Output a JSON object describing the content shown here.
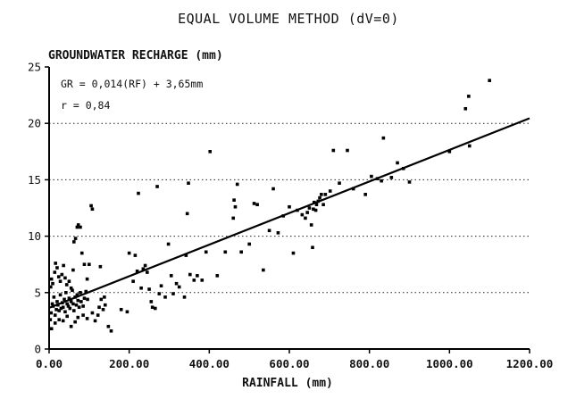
{
  "chart_data": {
    "type": "scatter",
    "title": "EQUAL VOLUME METHOD (dV=0)",
    "ylabel": "GROUNDWATER RECHARGE (mm)",
    "xlabel": "RAINFALL (mm)",
    "xlim": [
      0,
      1200
    ],
    "ylim": [
      0,
      25
    ],
    "x_ticks": [
      "0.00",
      "200.00",
      "400.00",
      "600.00",
      "800.00",
      "1000.00",
      "1200.00"
    ],
    "y_ticks": [
      "0",
      "5",
      "10",
      "15",
      "20",
      "25"
    ],
    "grid": "horizontal dotted at 5, 10, 15, 20",
    "annotations": [
      "GR = 0,014(RF) + 3,65mm",
      "r = 0,84"
    ],
    "regression": {
      "slope": 0.014,
      "intercept": 3.65
    },
    "points": [
      [
        3,
        2.6
      ],
      [
        5,
        3.2
      ],
      [
        8,
        4.0
      ],
      [
        10,
        3.8
      ],
      [
        12,
        4.6
      ],
      [
        15,
        3.0
      ],
      [
        18,
        3.5
      ],
      [
        20,
        4.2
      ],
      [
        22,
        3.9
      ],
      [
        25,
        3.4
      ],
      [
        28,
        4.8
      ],
      [
        30,
        3.6
      ],
      [
        33,
        4.1
      ],
      [
        35,
        3.7
      ],
      [
        38,
        4.4
      ],
      [
        40,
        3.3
      ],
      [
        42,
        5.0
      ],
      [
        45,
        4.0
      ],
      [
        48,
        3.8
      ],
      [
        50,
        4.5
      ],
      [
        52,
        3.6
      ],
      [
        55,
        4.2
      ],
      [
        58,
        5.2
      ],
      [
        60,
        4.0
      ],
      [
        62,
        3.4
      ],
      [
        65,
        4.6
      ],
      [
        68,
        3.9
      ],
      [
        70,
        4.8
      ],
      [
        72,
        4.3
      ],
      [
        75,
        3.7
      ],
      [
        78,
        5.0
      ],
      [
        80,
        4.2
      ],
      [
        85,
        3.8
      ],
      [
        88,
        4.5
      ],
      [
        92,
        5.1
      ],
      [
        96,
        4.4
      ],
      [
        4,
        5.5
      ],
      [
        6,
        6.2
      ],
      [
        9,
        5.8
      ],
      [
        14,
        6.8
      ],
      [
        16,
        7.6
      ],
      [
        20,
        7.2
      ],
      [
        24,
        6.4
      ],
      [
        28,
        6.0
      ],
      [
        32,
        6.6
      ],
      [
        36,
        7.4
      ],
      [
        40,
        6.3
      ],
      [
        44,
        5.7
      ],
      [
        50,
        6.0
      ],
      [
        55,
        5.4
      ],
      [
        60,
        7.0
      ],
      [
        62,
        9.5
      ],
      [
        66,
        9.8
      ],
      [
        70,
        10.8
      ],
      [
        73,
        11.0
      ],
      [
        78,
        10.8
      ],
      [
        82,
        8.5
      ],
      [
        88,
        7.5
      ],
      [
        95,
        6.2
      ],
      [
        100,
        7.5
      ],
      [
        105,
        12.7
      ],
      [
        108,
        12.4
      ],
      [
        6,
        1.8
      ],
      [
        15,
        2.3
      ],
      [
        25,
        2.6
      ],
      [
        35,
        2.5
      ],
      [
        45,
        2.9
      ],
      [
        55,
        2.0
      ],
      [
        65,
        2.4
      ],
      [
        72,
        2.8
      ],
      [
        85,
        3.0
      ],
      [
        95,
        2.7
      ],
      [
        108,
        3.2
      ],
      [
        115,
        2.5
      ],
      [
        122,
        3.0
      ],
      [
        125,
        3.7
      ],
      [
        130,
        4.4
      ],
      [
        135,
        3.5
      ],
      [
        138,
        4.6
      ],
      [
        140,
        3.9
      ],
      [
        128,
        7.3
      ],
      [
        148,
        2.0
      ],
      [
        155,
        1.6
      ],
      [
        180,
        3.5
      ],
      [
        195,
        3.3
      ],
      [
        200,
        8.5
      ],
      [
        210,
        6.0
      ],
      [
        215,
        8.3
      ],
      [
        220,
        6.9
      ],
      [
        223,
        13.8
      ],
      [
        230,
        5.4
      ],
      [
        235,
        7.1
      ],
      [
        240,
        7.4
      ],
      [
        245,
        6.8
      ],
      [
        250,
        5.3
      ],
      [
        255,
        4.2
      ],
      [
        258,
        3.7
      ],
      [
        265,
        3.6
      ],
      [
        270,
        14.4
      ],
      [
        275,
        4.9
      ],
      [
        280,
        5.6
      ],
      [
        290,
        4.6
      ],
      [
        298,
        9.3
      ],
      [
        305,
        6.5
      ],
      [
        310,
        4.9
      ],
      [
        318,
        5.8
      ],
      [
        325,
        5.5
      ],
      [
        338,
        4.6
      ],
      [
        342,
        8.3
      ],
      [
        345,
        12.0
      ],
      [
        348,
        14.7
      ],
      [
        352,
        6.6
      ],
      [
        362,
        6.1
      ],
      [
        370,
        6.5
      ],
      [
        382,
        6.1
      ],
      [
        392,
        8.6
      ],
      [
        402,
        17.5
      ],
      [
        420,
        6.5
      ],
      [
        440,
        8.6
      ],
      [
        460,
        11.6
      ],
      [
        462,
        13.2
      ],
      [
        465,
        12.6
      ],
      [
        470,
        14.6
      ],
      [
        480,
        8.6
      ],
      [
        500,
        9.3
      ],
      [
        512,
        12.9
      ],
      [
        520,
        12.8
      ],
      [
        535,
        7.0
      ],
      [
        550,
        10.5
      ],
      [
        560,
        14.2
      ],
      [
        572,
        10.3
      ],
      [
        585,
        11.8
      ],
      [
        600,
        12.6
      ],
      [
        610,
        8.5
      ],
      [
        620,
        12.3
      ],
      [
        632,
        11.9
      ],
      [
        640,
        11.6
      ],
      [
        645,
        12.1
      ],
      [
        650,
        12.5
      ],
      [
        655,
        11.0
      ],
      [
        658,
        9.0
      ],
      [
        660,
        12.4
      ],
      [
        662,
        13.0
      ],
      [
        666,
        12.3
      ],
      [
        668,
        12.8
      ],
      [
        672,
        13.1
      ],
      [
        676,
        13.4
      ],
      [
        680,
        13.7
      ],
      [
        685,
        12.8
      ],
      [
        690,
        13.7
      ],
      [
        702,
        14.0
      ],
      [
        710,
        17.6
      ],
      [
        725,
        14.7
      ],
      [
        745,
        17.6
      ],
      [
        760,
        14.2
      ],
      [
        790,
        13.7
      ],
      [
        805,
        15.3
      ],
      [
        820,
        15.1
      ],
      [
        830,
        14.9
      ],
      [
        835,
        18.7
      ],
      [
        855,
        15.2
      ],
      [
        870,
        16.5
      ],
      [
        885,
        16.0
      ],
      [
        900,
        14.8
      ],
      [
        1000,
        17.5
      ],
      [
        1040,
        21.3
      ],
      [
        1048,
        22.4
      ],
      [
        1050,
        18.0
      ],
      [
        1100,
        23.8
      ]
    ]
  }
}
